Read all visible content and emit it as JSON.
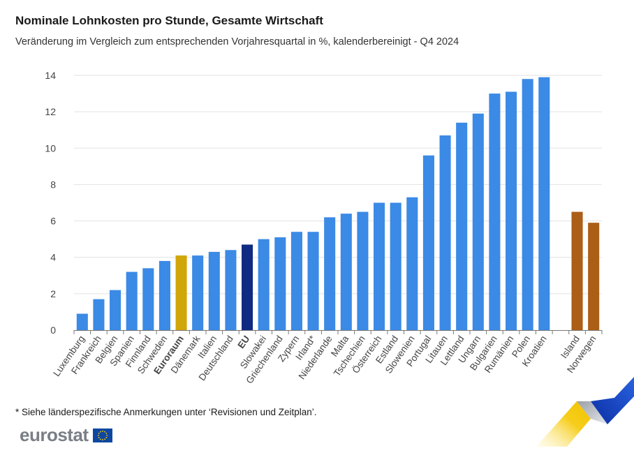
{
  "chart_data": {
    "type": "bar",
    "title": "Nominale Lohnkosten pro Stunde, Gesamte Wirtschaft",
    "subtitle": "Veränderung im Vergleich zum entsprechenden Vorjahresquartal in %, kalenderbereinigt - Q4 2024",
    "ylim": [
      0,
      14
    ],
    "yticks": [
      0,
      2,
      4,
      6,
      8,
      10,
      12,
      14
    ],
    "grid": true,
    "categories": [
      "Luxemburg",
      "Frankreich",
      "Belgien",
      "Spanien",
      "Finnland",
      "Schweden",
      "Euroraum",
      "Dänemark",
      "Italien",
      "Deutschland",
      "EU",
      "Slowakei",
      "Griechenland",
      "Zypern",
      "Irland*",
      "Niederlande",
      "Malta",
      "Tschechien",
      "Österreich",
      "Estland",
      "Slowenien",
      "Portugal",
      "Litauen",
      "Lettland",
      "Ungarn",
      "Bulgarien",
      "Rumänien",
      "Polen",
      "Kroatien",
      "",
      "Island",
      "Norwegen"
    ],
    "values": [
      0.9,
      1.7,
      2.2,
      3.2,
      3.4,
      3.8,
      4.1,
      4.1,
      4.3,
      4.4,
      4.7,
      5.0,
      5.1,
      5.4,
      5.4,
      6.2,
      6.4,
      6.5,
      7.0,
      7.0,
      7.3,
      9.6,
      10.7,
      11.4,
      11.9,
      13.0,
      13.1,
      13.8,
      13.9,
      null,
      6.5,
      5.9
    ],
    "groups": [
      "member",
      "member",
      "member",
      "member",
      "member",
      "member",
      "euro_area",
      "member",
      "member",
      "member",
      "eu",
      "member",
      "member",
      "member",
      "member",
      "member",
      "member",
      "member",
      "member",
      "member",
      "member",
      "member",
      "member",
      "member",
      "member",
      "member",
      "member",
      "member",
      "member",
      "gap",
      "efta",
      "efta"
    ],
    "bold_categories": [
      "Euroraum",
      "EU"
    ],
    "colors": {
      "member": "#3b8ae6",
      "euro_area": "#d1a60a",
      "eu": "#0f2a82",
      "efta": "#ab5e16",
      "grid": "#e2e2e2",
      "axis": "#777777",
      "text": "#444444"
    }
  },
  "footnote": "* Siehe länderspezifische Anmerkungen unter ‘Revisionen und Zeitplan’.",
  "logo": {
    "text": "eurostat",
    "flag_icon": "eu-flag-icon"
  }
}
